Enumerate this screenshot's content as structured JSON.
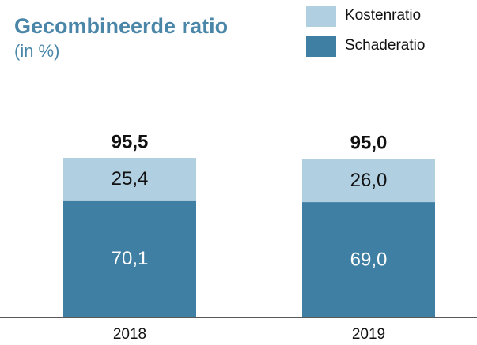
{
  "chart_data": {
    "type": "stacked_bar",
    "title": "Gecombineerde ratio",
    "subtitle": "(in %)",
    "categories": [
      "2018",
      "2019"
    ],
    "series": [
      {
        "name": "Schaderatio",
        "color": "#3f7fa3",
        "values": [
          70.1,
          69.0
        ],
        "value_labels": [
          "70,1",
          "69,0"
        ]
      },
      {
        "name": "Kostenratio",
        "color": "#b0cfe0",
        "values": [
          25.4,
          26.0
        ],
        "value_labels": [
          "25,4",
          "26,0"
        ]
      }
    ],
    "totals": [
      95.5,
      95.0
    ],
    "total_labels": [
      "95,5",
      "95,0"
    ]
  }
}
